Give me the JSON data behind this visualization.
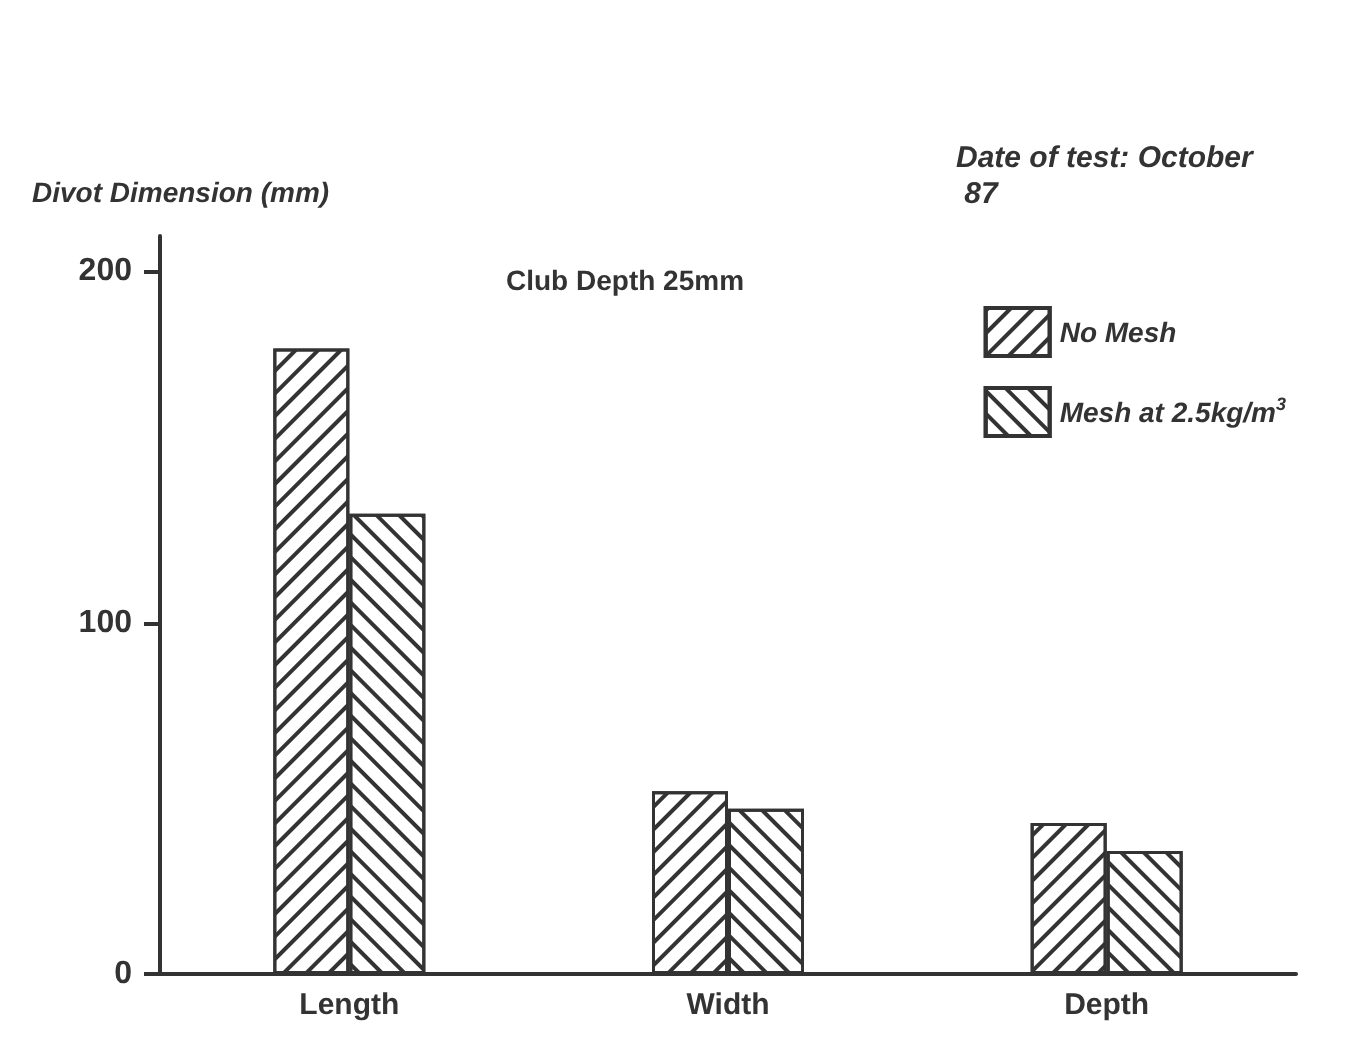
{
  "chart_data": {
    "type": "bar",
    "ylabel": "Divot Dimension (mm)",
    "legend_title": "Date of test: October 87",
    "annotations": [
      "Club Depth 25mm"
    ],
    "categories": [
      "Length",
      "Width",
      "Depth"
    ],
    "series": [
      {
        "name": "No Mesh",
        "color": "#333333",
        "values": [
          178,
          52,
          43
        ]
      },
      {
        "name": "Mesh at 2.5kg/m$^{3}$",
        "color": "#333333",
        "values": [
          131,
          47,
          35
        ]
      }
    ],
    "ylim": [
      0,
      210
    ],
    "yticks": [
      0,
      100,
      200
    ],
    "grid": false,
    "legend": "top right"
  }
}
